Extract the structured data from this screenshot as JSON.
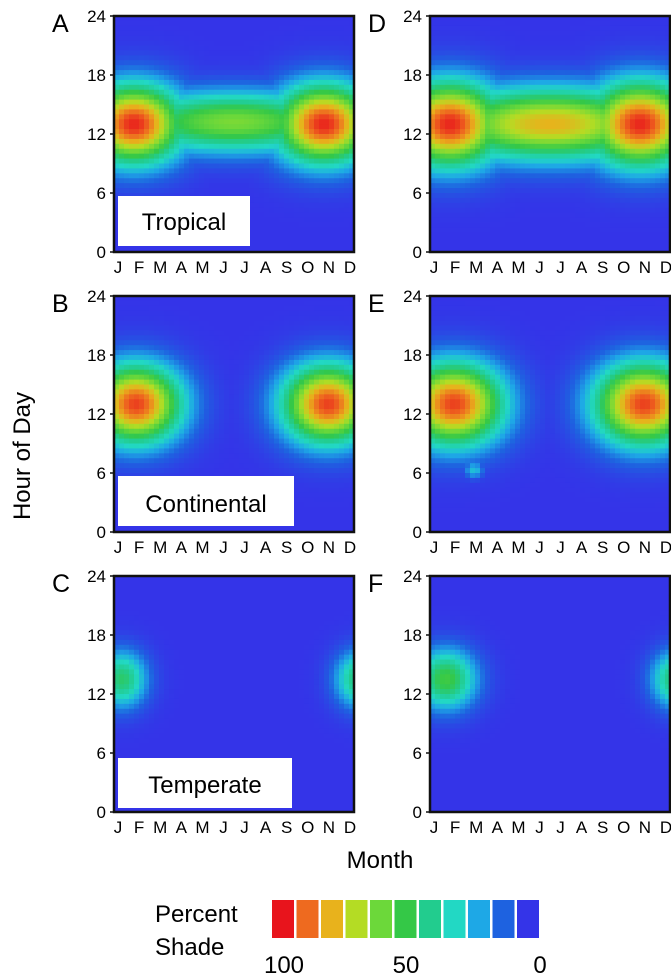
{
  "chart_data": {
    "type": "heatmap",
    "xlabel": "Month",
    "ylabel": "Hour of Day",
    "x_ticks": [
      "J",
      "F",
      "M",
      "A",
      "M",
      "J",
      "J",
      "A",
      "S",
      "O",
      "N",
      "D"
    ],
    "y_ticks": [
      "0",
      "6",
      "12",
      "18",
      "24"
    ],
    "ylim": [
      0,
      24
    ],
    "colorscale": {
      "title_line1": "Percent",
      "title_line2": "Shade",
      "tick_labels": [
        "100",
        "50",
        "0"
      ],
      "colors": [
        "#e8141c",
        "#ee6a1f",
        "#e8b21c",
        "#b4dc24",
        "#6cd83a",
        "#34c847",
        "#22cc8e",
        "#22d8c4",
        "#1ea8e6",
        "#1e62e0",
        "#3434e8"
      ],
      "values": [
        100,
        90,
        80,
        70,
        60,
        50,
        40,
        30,
        20,
        10,
        0
      ]
    },
    "panels": [
      {
        "letter": "A",
        "label": "Tropical",
        "column": "left",
        "blobs": [
          {
            "center_month": 1.5,
            "center_hour": 13,
            "peak_pct": 98,
            "half_width_months": 2.6,
            "half_height_hours": 4.2
          },
          {
            "center_month": 11,
            "center_hour": 13,
            "peak_pct": 98,
            "half_width_months": 2.6,
            "half_height_hours": 4.2
          },
          {
            "center_month": 6.5,
            "center_hour": 13.2,
            "peak_pct": 62,
            "half_width_months": 6,
            "half_height_hours": 3.2
          }
        ]
      },
      {
        "letter": "B",
        "label": "Continental",
        "column": "left",
        "blobs": [
          {
            "center_month": 1.6,
            "center_hour": 13,
            "peak_pct": 95,
            "half_width_months": 2.4,
            "half_height_hours": 4.2
          },
          {
            "center_month": 11.2,
            "center_hour": 13,
            "peak_pct": 95,
            "half_width_months": 2.4,
            "half_height_hours": 4.2
          }
        ]
      },
      {
        "letter": "C",
        "label": "Temperate",
        "column": "left",
        "blobs": [
          {
            "center_month": 0.9,
            "center_hour": 13.5,
            "peak_pct": 45,
            "half_width_months": 1.3,
            "half_height_hours": 3
          },
          {
            "center_month": 12.8,
            "center_hour": 13.5,
            "peak_pct": 45,
            "half_width_months": 1.3,
            "half_height_hours": 3
          }
        ]
      },
      {
        "letter": "D",
        "label": "",
        "column": "right",
        "blobs": [
          {
            "center_month": 1.5,
            "center_hour": 13,
            "peak_pct": 98,
            "half_width_months": 2.8,
            "half_height_hours": 4.5
          },
          {
            "center_month": 11,
            "center_hour": 13,
            "peak_pct": 98,
            "half_width_months": 2.8,
            "half_height_hours": 4.5
          },
          {
            "center_month": 6.5,
            "center_hour": 13,
            "peak_pct": 80,
            "half_width_months": 6,
            "half_height_hours": 3.8
          }
        ]
      },
      {
        "letter": "E",
        "label": "",
        "column": "right",
        "blobs": [
          {
            "center_month": 1.7,
            "center_hour": 13,
            "peak_pct": 95,
            "half_width_months": 2.6,
            "half_height_hours": 4.4
          },
          {
            "center_month": 11.2,
            "center_hour": 13,
            "peak_pct": 95,
            "half_width_months": 2.6,
            "half_height_hours": 4.4
          },
          {
            "center_month": 2.7,
            "center_hour": 6.3,
            "peak_pct": 25,
            "half_width_months": 0.5,
            "half_height_hours": 0.9
          }
        ]
      },
      {
        "letter": "F",
        "label": "",
        "column": "right",
        "blobs": [
          {
            "center_month": 1.3,
            "center_hour": 13.5,
            "peak_pct": 52,
            "half_width_months": 1.6,
            "half_height_hours": 3.2
          },
          {
            "center_month": 12.8,
            "center_hour": 13.5,
            "peak_pct": 45,
            "half_width_months": 1.3,
            "half_height_hours": 3
          }
        ]
      }
    ]
  }
}
